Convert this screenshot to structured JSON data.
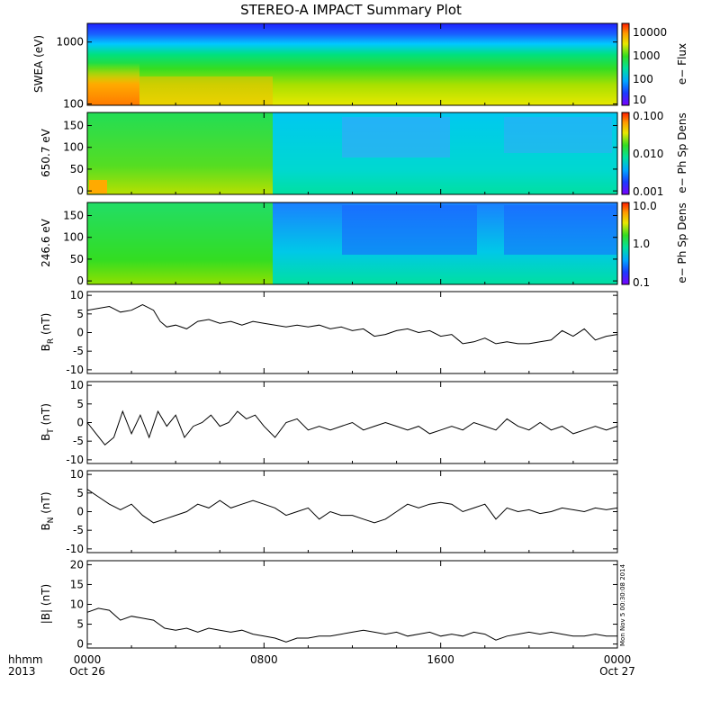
{
  "chart_data": {
    "type": "multi-panel",
    "title": "STEREO-A IMPACT Summary Plot",
    "stamp": "Mon Nov  5 00:30:08 2014",
    "time_axis": {
      "row1": "hhmm",
      "row2": "2013",
      "ticks": [
        {
          "t": 0,
          "top": "0000",
          "bottom": "Oct 26"
        },
        {
          "t": 8,
          "top": "0800",
          "bottom": ""
        },
        {
          "t": 16,
          "top": "1600",
          "bottom": ""
        },
        {
          "t": 24,
          "top": "0000",
          "bottom": "Oct 27"
        }
      ],
      "range_hours": [
        0,
        24
      ]
    },
    "panels": [
      {
        "id": "swea",
        "type": "heatmap",
        "ylabel": "SWEA (eV)",
        "yscale": "log",
        "ylim": [
          95,
          2000
        ],
        "ytick_values": [
          100,
          1000
        ],
        "ytick_labels": [
          "100",
          "1000"
        ],
        "colorbar": {
          "label": "e− Flux",
          "ticks": [
            "10",
            "100",
            "1000",
            "10000"
          ],
          "scale": "log"
        },
        "description_band": "flux highest (red/orange) at low energy early in interval; blue at top energies"
      },
      {
        "id": "pad650",
        "type": "heatmap",
        "ylabel": "650.7 eV",
        "ylim": [
          -8,
          180
        ],
        "ytick_values": [
          0,
          50,
          100,
          150
        ],
        "ytick_labels": [
          "0",
          "50",
          "100",
          "150"
        ],
        "colorbar": {
          "label": "e− Ph Sp Dens",
          "ticks": [
            "0.001",
            "0.010",
            "0.100"
          ],
          "scale": "log"
        }
      },
      {
        "id": "pad246",
        "type": "heatmap",
        "ylabel": "246.6 eV",
        "ylim": [
          -8,
          180
        ],
        "ytick_values": [
          0,
          50,
          100,
          150
        ],
        "ytick_labels": [
          "0",
          "50",
          "100",
          "150"
        ],
        "colorbar": {
          "label": "e− Ph Sp Dens",
          "ticks": [
            "0.1",
            "1.0",
            "10.0"
          ],
          "scale": "log"
        }
      },
      {
        "id": "br",
        "type": "line",
        "ylabel_main": "B",
        "ylabel_sub": "R",
        "ylabel_unit": " (nT)",
        "ylim": [
          -11,
          11
        ],
        "ytick_values": [
          10,
          5,
          0,
          -5,
          -10
        ],
        "ytick_labels": [
          "10",
          "5",
          "0",
          "-5",
          "-10"
        ],
        "x": [
          0,
          0.5,
          1,
          1.5,
          2,
          2.5,
          3,
          3.3,
          3.6,
          4,
          4.5,
          5,
          5.5,
          6,
          6.5,
          7,
          7.5,
          8,
          8.5,
          9,
          9.5,
          10,
          10.5,
          11,
          11.5,
          12,
          12.5,
          13,
          13.5,
          14,
          14.5,
          15,
          15.5,
          16,
          16.5,
          17,
          17.5,
          18,
          18.5,
          19,
          19.5,
          20,
          20.5,
          21,
          21.5,
          22,
          22.5,
          23,
          23.5,
          24
        ],
        "y": [
          6,
          6.5,
          7,
          5.5,
          6,
          7.5,
          6,
          3,
          1.5,
          2,
          1,
          3,
          3.5,
          2.5,
          3,
          2,
          3,
          2.5,
          2,
          1.5,
          2,
          1.5,
          2,
          1,
          1.5,
          0.5,
          1,
          -1,
          -0.5,
          0.5,
          1,
          0,
          0.5,
          -1,
          -0.5,
          -3,
          -2.5,
          -1.5,
          -3,
          -2.5,
          -3,
          -3,
          -2.5,
          -2,
          0.5,
          -1,
          1,
          -2,
          -1,
          -0.5
        ]
      },
      {
        "id": "bt",
        "type": "line",
        "ylabel_main": "B",
        "ylabel_sub": "T",
        "ylabel_unit": " (nT)",
        "ylim": [
          -11,
          11
        ],
        "ytick_values": [
          10,
          5,
          0,
          -5,
          -10
        ],
        "ytick_labels": [
          "10",
          "5",
          "0",
          "-5",
          "-10"
        ],
        "x": [
          0,
          0.4,
          0.8,
          1.2,
          1.6,
          2,
          2.4,
          2.8,
          3.2,
          3.6,
          4,
          4.4,
          4.8,
          5.2,
          5.6,
          6,
          6.4,
          6.8,
          7.2,
          7.6,
          8,
          8.5,
          9,
          9.5,
          10,
          10.5,
          11,
          11.5,
          12,
          12.5,
          13,
          13.5,
          14,
          14.5,
          15,
          15.5,
          16,
          16.5,
          17,
          17.5,
          18,
          18.5,
          19,
          19.5,
          20,
          20.5,
          21,
          21.5,
          22,
          22.5,
          23,
          23.5,
          24
        ],
        "y": [
          0,
          -3,
          -6,
          -4,
          3,
          -3,
          2,
          -4,
          3,
          -1,
          2,
          -4,
          -1,
          0,
          2,
          -1,
          0,
          3,
          1,
          2,
          -1,
          -4,
          0,
          1,
          -2,
          -1,
          -2,
          -1,
          0,
          -2,
          -1,
          0,
          -1,
          -2,
          -1,
          -3,
          -2,
          -1,
          -2,
          0,
          -1,
          -2,
          1,
          -1,
          -2,
          0,
          -2,
          -1,
          -3,
          -2,
          -1,
          -2,
          -1
        ]
      },
      {
        "id": "bn",
        "type": "line",
        "ylabel_main": "B",
        "ylabel_sub": "N",
        "ylabel_unit": " (nT)",
        "ylim": [
          -11,
          11
        ],
        "ytick_values": [
          10,
          5,
          0,
          -5,
          -10
        ],
        "ytick_labels": [
          "10",
          "5",
          "0",
          "-5",
          "-10"
        ],
        "x": [
          0,
          0.5,
          1,
          1.5,
          2,
          2.5,
          3,
          3.5,
          4,
          4.5,
          5,
          5.5,
          6,
          6.5,
          7,
          7.5,
          8,
          8.5,
          9,
          9.5,
          10,
          10.5,
          11,
          11.5,
          12,
          12.5,
          13,
          13.5,
          14,
          14.5,
          15,
          15.5,
          16,
          16.5,
          17,
          17.5,
          18,
          18.5,
          19,
          19.5,
          20,
          20.5,
          21,
          21.5,
          22,
          22.5,
          23,
          23.5,
          24
        ],
        "y": [
          6,
          4,
          2,
          0.5,
          2,
          -1,
          -3,
          -2,
          -1,
          0,
          2,
          1,
          3,
          1,
          2,
          3,
          2,
          1,
          -1,
          0,
          1,
          -2,
          0,
          -1,
          -1,
          -2,
          -3,
          -2,
          0,
          2,
          1,
          2,
          2.5,
          2,
          0,
          1,
          2,
          -2,
          1,
          0,
          0.5,
          -0.5,
          0,
          1,
          0.5,
          0,
          1,
          0.5,
          1
        ]
      },
      {
        "id": "bmag",
        "type": "line",
        "ylabel_main": "|B| (nT)",
        "ylim": [
          -1,
          21
        ],
        "ytick_values": [
          20,
          15,
          10,
          5,
          0
        ],
        "ytick_labels": [
          "20",
          "15",
          "10",
          "5",
          "0"
        ],
        "x": [
          0,
          0.5,
          1,
          1.5,
          2,
          2.5,
          3,
          3.5,
          4,
          4.5,
          5,
          5.5,
          6,
          6.5,
          7,
          7.5,
          8,
          8.5,
          9,
          9.5,
          10,
          10.5,
          11,
          11.5,
          12,
          12.5,
          13,
          13.5,
          14,
          14.5,
          15,
          15.5,
          16,
          16.5,
          17,
          17.5,
          18,
          18.5,
          19,
          19.5,
          20,
          20.5,
          21,
          21.5,
          22,
          22.5,
          23,
          23.5,
          24
        ],
        "y": [
          8,
          9,
          8.5,
          6,
          7,
          6.5,
          6,
          4,
          3.5,
          4,
          3,
          4,
          3.5,
          3,
          3.5,
          2.5,
          2,
          1.5,
          0.5,
          1.5,
          1.5,
          2,
          2,
          2.5,
          3,
          3.5,
          3,
          2.5,
          3,
          2,
          2.5,
          3,
          2,
          2.5,
          2,
          3,
          2.5,
          1,
          2,
          2.5,
          3,
          2.5,
          3,
          2.5,
          2,
          2,
          2.5,
          2,
          2
        ]
      }
    ],
    "colors": {
      "line": "#000000",
      "frame": "#000000",
      "background": "#ffffff"
    }
  }
}
